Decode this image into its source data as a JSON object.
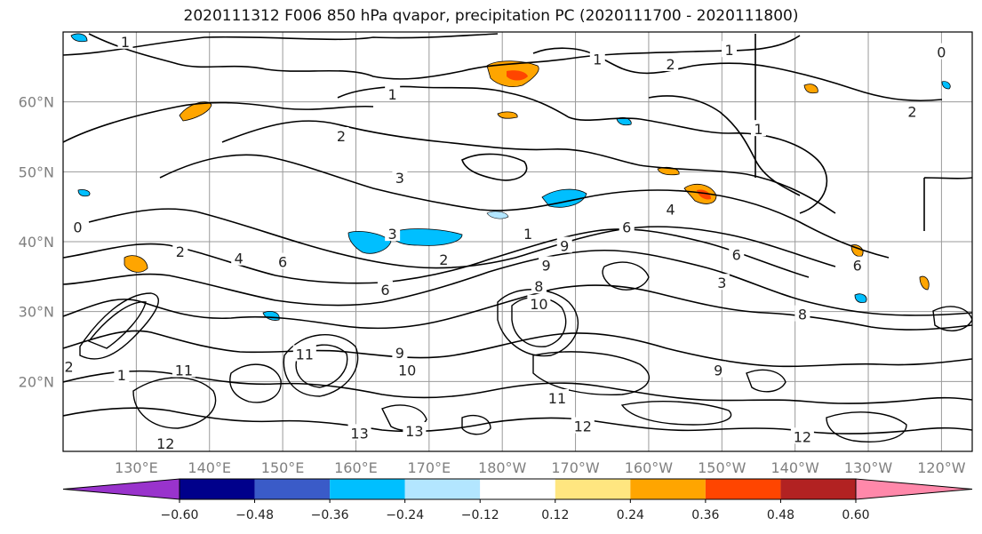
{
  "title": "2020111312 F006 850 hPa qvapor, precipitation PC (2020111700 - 2020111800)",
  "map": {
    "extent": {
      "lon_min": 120.0,
      "lon_max": 244.2,
      "lat_min": 10.0,
      "lat_max": 70.0
    },
    "lat_ticks": [
      {
        "value": 20,
        "label": "20°N"
      },
      {
        "value": 30,
        "label": "30°N"
      },
      {
        "value": 40,
        "label": "40°N"
      },
      {
        "value": 50,
        "label": "50°N"
      },
      {
        "value": 60,
        "label": "60°N"
      }
    ],
    "lon_ticks": [
      {
        "value": 130,
        "label": "130°E"
      },
      {
        "value": 140,
        "label": "140°E"
      },
      {
        "value": 150,
        "label": "150°E"
      },
      {
        "value": 160,
        "label": "160°E"
      },
      {
        "value": 170,
        "label": "170°E"
      },
      {
        "value": 180,
        "label": "180°W"
      },
      {
        "value": 190,
        "label": "170°W"
      },
      {
        "value": 200,
        "label": "160°W"
      },
      {
        "value": 210,
        "label": "150°W"
      },
      {
        "value": 220,
        "label": "140°W"
      },
      {
        "value": 230,
        "label": "130°W"
      },
      {
        "value": 240,
        "label": "120°W"
      }
    ],
    "gridlines": true,
    "contour_color": "#000000",
    "contour_labels": [
      {
        "text": "1",
        "lon": 128.5,
        "lat": 68.5
      },
      {
        "text": "1",
        "lon": 193.0,
        "lat": 66.0
      },
      {
        "text": "2",
        "lon": 203.0,
        "lat": 65.3
      },
      {
        "text": "1",
        "lon": 211.0,
        "lat": 67.3
      },
      {
        "text": "1",
        "lon": 165.0,
        "lat": 61.0
      },
      {
        "text": "2",
        "lon": 158.0,
        "lat": 55.0
      },
      {
        "text": "3",
        "lon": 166.0,
        "lat": 49.0
      },
      {
        "text": "3",
        "lon": 165.0,
        "lat": 41.0
      },
      {
        "text": "1",
        "lon": 183.5,
        "lat": 41.0
      },
      {
        "text": "2",
        "lon": 172.0,
        "lat": 37.3
      },
      {
        "text": "4",
        "lon": 144.0,
        "lat": 37.5
      },
      {
        "text": "6",
        "lon": 150.0,
        "lat": 37.0
      },
      {
        "text": "9",
        "lon": 188.5,
        "lat": 39.3
      },
      {
        "text": "9",
        "lon": 186.0,
        "lat": 36.5
      },
      {
        "text": "8",
        "lon": 185.0,
        "lat": 33.5
      },
      {
        "text": "4",
        "lon": 203.0,
        "lat": 44.5
      },
      {
        "text": "6",
        "lon": 197.0,
        "lat": 42.0
      },
      {
        "text": "6",
        "lon": 212.0,
        "lat": 38.0
      },
      {
        "text": "3",
        "lon": 210.0,
        "lat": 34.0
      },
      {
        "text": "6",
        "lon": 164.0,
        "lat": 33.0
      },
      {
        "text": "10",
        "lon": 185.0,
        "lat": 31.0
      },
      {
        "text": "10",
        "lon": 167.0,
        "lat": 21.5
      },
      {
        "text": "11",
        "lon": 153.0,
        "lat": 23.8
      },
      {
        "text": "9",
        "lon": 166.0,
        "lat": 24.0
      },
      {
        "text": "11",
        "lon": 187.5,
        "lat": 17.5
      },
      {
        "text": "12",
        "lon": 191.0,
        "lat": 13.5
      },
      {
        "text": "13",
        "lon": 160.5,
        "lat": 12.5
      },
      {
        "text": "13",
        "lon": 168.0,
        "lat": 12.8
      },
      {
        "text": "12",
        "lon": 134.0,
        "lat": 11.0
      },
      {
        "text": "12",
        "lon": 221.0,
        "lat": 12.0
      },
      {
        "text": "11",
        "lon": 136.5,
        "lat": 21.5
      },
      {
        "text": "2",
        "lon": 136.0,
        "lat": 38.5
      },
      {
        "text": "0",
        "lon": 122.0,
        "lat": 42.0
      },
      {
        "text": "2",
        "lon": 120.8,
        "lat": 22.0
      },
      {
        "text": "1",
        "lon": 128.0,
        "lat": 20.8
      },
      {
        "text": "0",
        "lon": 240.0,
        "lat": 67.0
      },
      {
        "text": "2",
        "lon": 236.0,
        "lat": 58.5
      },
      {
        "text": "1",
        "lon": 215.0,
        "lat": 56.0
      },
      {
        "text": "6",
        "lon": 228.5,
        "lat": 36.5
      },
      {
        "text": "8",
        "lon": 221.0,
        "lat": 29.5
      },
      {
        "text": "9",
        "lon": 209.5,
        "lat": 21.5
      }
    ]
  },
  "colorbar": {
    "colors": [
      "#9933cc",
      "#00008b",
      "#3a5bc8",
      "#00bfff",
      "#b3e6ff",
      "#ffffff",
      "#ffe680",
      "#ffa500",
      "#ff4500",
      "#b22222",
      "#ff88aa"
    ],
    "tick_labels": [
      "−0.60",
      "−0.48",
      "−0.36",
      "−0.24",
      "−0.12",
      "0.12",
      "0.24",
      "0.36",
      "0.48",
      "0.60"
    ]
  }
}
